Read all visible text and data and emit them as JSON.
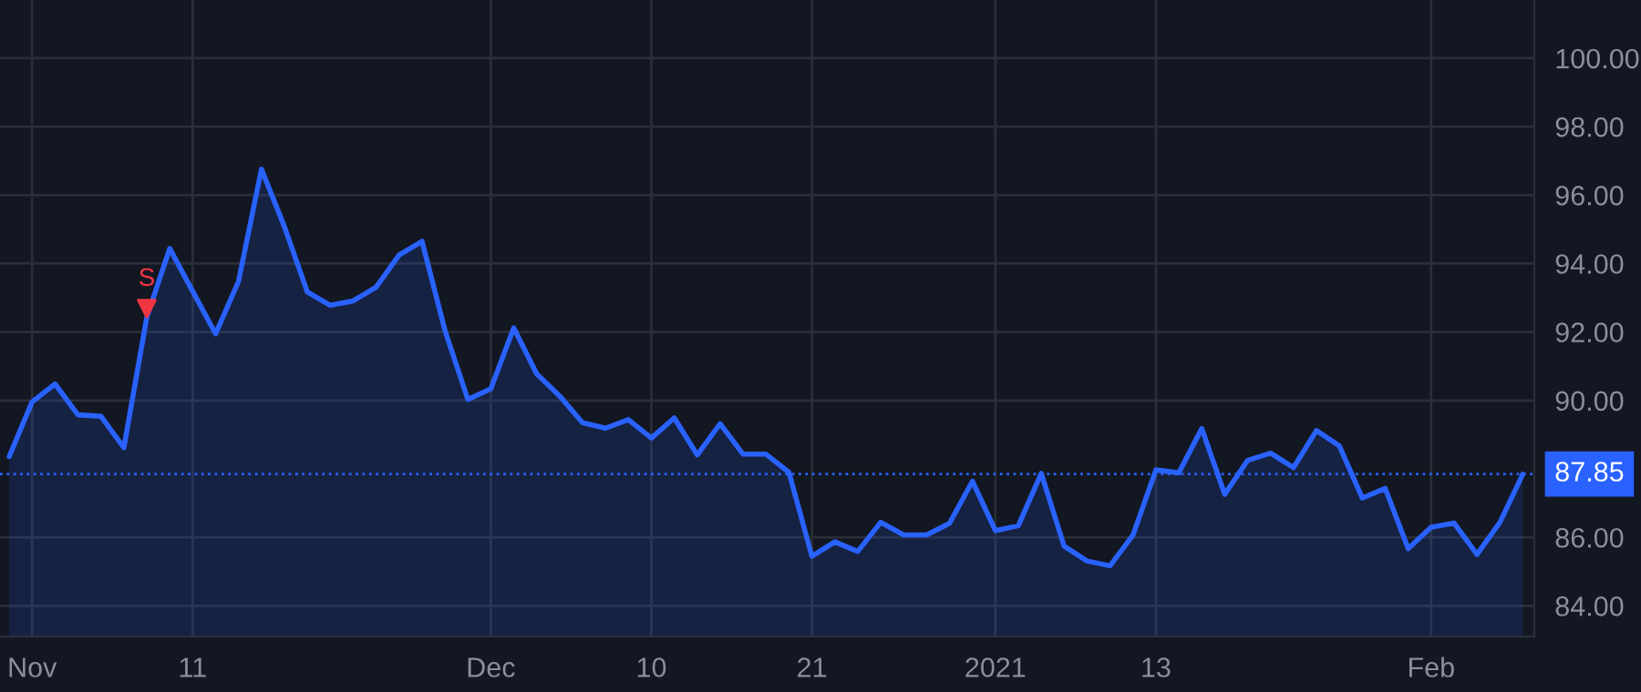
{
  "chart_data": {
    "type": "area",
    "categories": [
      null,
      "Nov",
      null,
      null,
      null,
      null,
      null,
      null,
      "11",
      null,
      null,
      null,
      null,
      null,
      null,
      null,
      null,
      null,
      null,
      null,
      null,
      "Dec",
      null,
      null,
      null,
      null,
      null,
      null,
      "10",
      null,
      null,
      null,
      null,
      null,
      null,
      "21",
      null,
      null,
      null,
      null,
      null,
      null,
      null,
      "2021",
      null,
      null,
      null,
      null,
      null,
      null,
      "13",
      null,
      null,
      null,
      null,
      null,
      null,
      null,
      null,
      null,
      null,
      null,
      "Feb",
      null,
      null,
      null,
      null
    ],
    "series": [
      {
        "color": "#2962ff",
        "values": [
          88.36,
          89.96,
          90.48,
          89.58,
          89.54,
          88.62,
          92.43,
          94.44,
          93.19,
          91.95,
          93.48,
          96.76,
          95.08,
          93.17,
          92.78,
          92.91,
          93.31,
          94.25,
          94.65,
          92.05,
          90.03,
          90.34,
          92.12,
          90.78,
          90.13,
          89.35,
          89.19,
          89.44,
          88.9,
          89.49,
          88.41,
          89.32,
          88.43,
          88.43,
          87.9,
          85.45,
          85.87,
          85.59,
          86.44,
          86.07,
          86.07,
          86.41,
          87.64,
          86.2,
          86.34,
          87.87,
          85.74,
          85.31,
          85.17,
          86.07,
          87.97,
          87.89,
          89.18,
          87.26,
          88.25,
          88.46,
          88.04,
          89.12,
          88.67,
          87.15,
          87.43,
          85.67,
          86.3,
          86.42,
          85.5,
          86.44,
          87.85
        ]
      },
      {
        "type": "scatter",
        "name": "S",
        "color": "#f23645",
        "marker": "triangle",
        "values": [
          null,
          null,
          null,
          null,
          null,
          null,
          92.68,
          null,
          null,
          null,
          null,
          null,
          null,
          null,
          null,
          null,
          null,
          null,
          null,
          null,
          null,
          null,
          null,
          null,
          null,
          null,
          null,
          null,
          null,
          null,
          null,
          null,
          null,
          null,
          null,
          null,
          null,
          null,
          null,
          null,
          null,
          null,
          null,
          null,
          null,
          null,
          null,
          null,
          null,
          null,
          null,
          null,
          null,
          null,
          null,
          null,
          null,
          null,
          null,
          null,
          null,
          null,
          null,
          null,
          null,
          null,
          null
        ]
      }
    ],
    "ylim": [
      83.1,
      101.7
    ],
    "yticks": [
      {
        "value": 84,
        "label": "84.00"
      },
      {
        "value": 86,
        "label": "86.00"
      },
      {
        "value": 90,
        "label": "90.00"
      },
      {
        "value": 92,
        "label": "92.00"
      },
      {
        "value": 94,
        "label": "94.00"
      },
      {
        "value": 96,
        "label": "96.00"
      },
      {
        "value": 98,
        "label": "98.00"
      },
      {
        "value": 100,
        "label": "100.00"
      }
    ],
    "ref_lines": [
      {
        "axis": "y",
        "value": 87.85,
        "label": "87.85",
        "color": "#2962ff",
        "line_style": "dotted"
      }
    ],
    "grid": true
  }
}
